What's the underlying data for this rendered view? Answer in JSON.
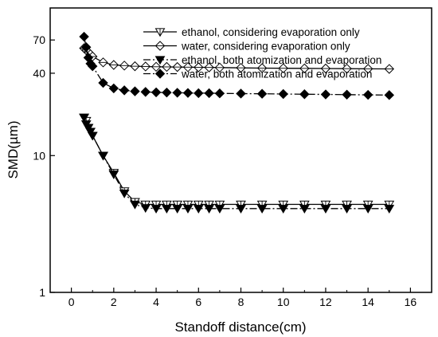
{
  "chart_data": {
    "type": "line",
    "title": "",
    "xlabel": "Standoff distance(cm)",
    "ylabel": "SMD(µm)",
    "xlim": [
      -1,
      17
    ],
    "ylim": [
      1,
      120
    ],
    "y_scale": "log",
    "grid": false,
    "legend_position": "top-right",
    "x_ticks": [
      "0",
      "2",
      "4",
      "6",
      "8",
      "10",
      "12",
      "14",
      "16"
    ],
    "y_ticks": [
      "1",
      "10",
      "40",
      "70"
    ],
    "series": [
      {
        "name": "ethanol, considering evaporation only",
        "marker": "open-down-triangle",
        "line": "solid",
        "color": "#000000",
        "x": [
          0.6,
          0.7,
          0.8,
          0.9,
          1.0,
          1.5,
          2.0,
          2.5,
          3.0,
          3.5,
          4.0,
          4.5,
          5.0,
          5.5,
          6.0,
          6.5,
          7.0,
          8.0,
          9.0,
          10.0,
          11.0,
          12.0,
          13.0,
          14.0,
          15.0
        ],
        "y": [
          19,
          18,
          16,
          15,
          14,
          10,
          7.5,
          5.5,
          4.6,
          4.4,
          4.4,
          4.4,
          4.4,
          4.4,
          4.4,
          4.4,
          4.4,
          4.4,
          4.4,
          4.4,
          4.4,
          4.4,
          4.4,
          4.4,
          4.4
        ]
      },
      {
        "name": "water, considering evaporation only",
        "marker": "open-diamond",
        "line": "solid",
        "color": "#000000",
        "x": [
          0.6,
          0.7,
          0.8,
          0.9,
          1.0,
          1.5,
          2.0,
          2.5,
          3.0,
          3.5,
          4.0,
          4.5,
          5.0,
          5.5,
          6.0,
          6.5,
          7.0,
          8.0,
          9.0,
          10.0,
          11.0,
          12.0,
          13.0,
          14.0,
          15.0
        ],
        "y": [
          61,
          59,
          57,
          55,
          53,
          48,
          46,
          45.5,
          45,
          44.8,
          44.6,
          44.5,
          44.4,
          44.3,
          44.2,
          44.1,
          44,
          43.8,
          43.6,
          43.5,
          43.4,
          43.3,
          43.2,
          43.1,
          43
        ]
      },
      {
        "name": "ethanol, both atomization and evaporation",
        "marker": "filled-down-triangle",
        "line": "dash-dot",
        "color": "#000000",
        "x": [
          0.6,
          0.7,
          0.8,
          0.9,
          1.0,
          1.5,
          2.0,
          2.5,
          3.0,
          3.5,
          4.0,
          4.5,
          5.0,
          5.5,
          6.0,
          6.5,
          7.0,
          8.0,
          9.0,
          10.0,
          11.0,
          12.0,
          13.0,
          14.0,
          15.0
        ],
        "y": [
          19,
          17,
          16,
          15,
          14,
          10,
          7.3,
          5.3,
          4.4,
          4.15,
          4.1,
          4.1,
          4.1,
          4.1,
          4.1,
          4.1,
          4.1,
          4.1,
          4.1,
          4.1,
          4.1,
          4.1,
          4.1,
          4.1,
          4.1
        ]
      },
      {
        "name": "water, both atomization and evaporation",
        "marker": "filled-diamond",
        "line": "dash-dot",
        "color": "#000000",
        "x": [
          0.6,
          0.7,
          0.8,
          0.9,
          1.0,
          1.5,
          2.0,
          2.5,
          3.0,
          3.5,
          4.0,
          4.5,
          5.0,
          5.5,
          6.0,
          6.5,
          7.0,
          8.0,
          9.0,
          10.0,
          11.0,
          12.0,
          13.0,
          14.0,
          15.0
        ],
        "y": [
          74,
          62,
          52,
          47,
          45,
          34,
          31,
          30,
          29.5,
          29.2,
          29,
          28.9,
          28.8,
          28.7,
          28.6,
          28.6,
          28.5,
          28.4,
          28.3,
          28.2,
          28.1,
          28,
          27.9,
          27.8,
          27.7
        ]
      }
    ]
  }
}
